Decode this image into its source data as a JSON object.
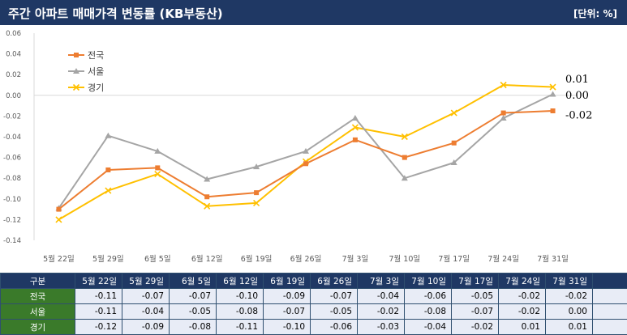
{
  "header": {
    "title": "주간 아파트 매매가격 변동률 (KB부동산)",
    "unit": "[단위: %]"
  },
  "colors": {
    "header_bg": "#1f3864",
    "row_label_bg": "#3a7a2a",
    "cell_bg": "#e8ecf6"
  },
  "chart_data": {
    "type": "line",
    "x": [
      "5월 22일",
      "5월 29일",
      "6월 5일",
      "6월 12일",
      "6월 19일",
      "6월 26일",
      "7월 3일",
      "7월 10일",
      "7월 17일",
      "7월 24일",
      "7월 31일"
    ],
    "series": [
      {
        "name": "전국",
        "color": "#ed7d31",
        "marker": "square",
        "values": [
          -0.11,
          -0.072,
          -0.07,
          -0.098,
          -0.094,
          -0.066,
          -0.043,
          -0.06,
          -0.046,
          -0.017,
          -0.015
        ]
      },
      {
        "name": "서울",
        "color": "#a5a5a5",
        "marker": "triangle",
        "values": [
          -0.109,
          -0.039,
          -0.054,
          -0.081,
          -0.069,
          -0.054,
          -0.022,
          -0.08,
          -0.065,
          -0.022,
          0.001
        ]
      },
      {
        "name": "경기",
        "color": "#ffc000",
        "marker": "x",
        "values": [
          -0.12,
          -0.092,
          -0.076,
          -0.107,
          -0.104,
          -0.064,
          -0.031,
          -0.04,
          -0.017,
          0.01,
          0.008
        ]
      }
    ],
    "end_labels": [
      "0.01",
      "0.00",
      "-0.02"
    ],
    "yticks": [
      "0.06",
      "0.04",
      "0.02",
      "0.00",
      "-0.02",
      "-0.04",
      "-0.06",
      "-0.08",
      "-0.10",
      "-0.12",
      "-0.14"
    ],
    "ylim": [
      -0.14,
      0.06
    ],
    "grid": false,
    "legend_position": "top-left"
  },
  "table": {
    "corner": "구분",
    "columns": [
      "5월 22일",
      "5월 29일",
      "6월 5일",
      "6월 12일",
      "6월 19일",
      "6월 26일",
      "7월 3일",
      "7월 10일",
      "7월 17일",
      "7월 24일",
      "7월 31일"
    ],
    "rows": [
      {
        "label": "전국",
        "values": [
          "-0.11",
          "-0.07",
          "-0.07",
          "-0.10",
          "-0.09",
          "-0.07",
          "-0.04",
          "-0.06",
          "-0.05",
          "-0.02",
          "-0.02"
        ]
      },
      {
        "label": "서울",
        "values": [
          "-0.11",
          "-0.04",
          "-0.05",
          "-0.08",
          "-0.07",
          "-0.05",
          "-0.02",
          "-0.08",
          "-0.07",
          "-0.02",
          "0.00"
        ]
      },
      {
        "label": "경기",
        "values": [
          "-0.12",
          "-0.09",
          "-0.08",
          "-0.11",
          "-0.10",
          "-0.06",
          "-0.03",
          "-0.04",
          "-0.02",
          "0.01",
          "0.01"
        ]
      }
    ]
  }
}
